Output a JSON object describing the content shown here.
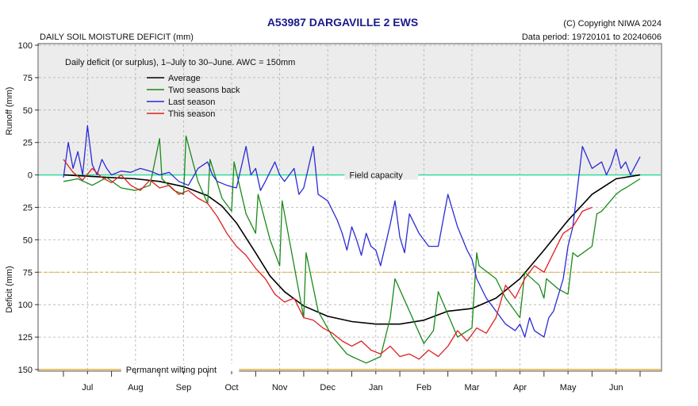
{
  "header": {
    "title": "A53987  DARGAVILLE 2 EWS",
    "subtitle": "DAILY SOIL MOISTURE DEFICIT (mm)",
    "copyright": "(C) Copyright NIWA  2024",
    "data_period": "Data period:  19720101  to  20240606"
  },
  "colors": {
    "average": "#000000",
    "two_seasons_back": "#1a8a1a",
    "last_season": "#2a2ad6",
    "this_season": "#e02020",
    "field_capacity": "#33dd99",
    "awc_half": "#e8b040",
    "wilting": "#e8b040",
    "title": "#1a1a8c",
    "panel": "#ececec"
  },
  "chart_data": {
    "type": "line",
    "title": "A53987  DARGAVILLE 2 EWS",
    "annotation": "Daily deficit (or surplus), 1–July to 30–June.  AWC = 150mm",
    "ylabel_top": "Runoff (mm)",
    "ylabel_bottom": "Deficit (mm)",
    "ylim": [
      -150,
      100
    ],
    "y_ticks": [
      {
        "value": 100,
        "label": "100"
      },
      {
        "value": 75,
        "label": "75"
      },
      {
        "value": 50,
        "label": "50"
      },
      {
        "value": 25,
        "label": "25"
      },
      {
        "value": 0,
        "label": "0"
      },
      {
        "value": -25,
        "label": "25"
      },
      {
        "value": -50,
        "label": "50"
      },
      {
        "value": -75,
        "label": "75"
      },
      {
        "value": -100,
        "label": "100"
      },
      {
        "value": -125,
        "label": "125"
      },
      {
        "value": -150,
        "label": "150"
      }
    ],
    "x_unit": "month index (0 = 1 July, 12 = 30 June)",
    "xlim": [
      0,
      12
    ],
    "months": [
      "Jul",
      "Aug",
      "Sep",
      "Oct",
      "Nov",
      "Dec",
      "Jan",
      "Feb",
      "Mar",
      "Apr",
      "May",
      "Jun"
    ],
    "reference_lines": [
      {
        "name": "field-capacity",
        "value": 0,
        "label": "Field capacity",
        "label_x": 5.95
      },
      {
        "name": "half-awc",
        "value": -75,
        "label": ""
      },
      {
        "name": "permanent-wilting-point",
        "value": -150,
        "label": "Permanent wilting point",
        "label_x": 1.3
      }
    ],
    "series": [
      {
        "name": "Average",
        "color": "#000000",
        "x": [
          0,
          0.5,
          1,
          1.5,
          2,
          2.5,
          3,
          3.3,
          3.6,
          4,
          4.3,
          4.6,
          5,
          5.5,
          6,
          6.5,
          7,
          7.5,
          8,
          8.5,
          9,
          9.5,
          10,
          10.5,
          11,
          11.5,
          12
        ],
        "y": [
          0,
          -1,
          -2,
          -3,
          -5,
          -9,
          -16,
          -24,
          -37,
          -60,
          -78,
          -90,
          -101,
          -109,
          -113,
          -115,
          -115,
          -112,
          -105,
          -103,
          -95,
          -80,
          -58,
          -35,
          -15,
          -3,
          0
        ]
      },
      {
        "name": "Two seasons back",
        "color": "#1a8a1a",
        "x": [
          0,
          0.3,
          0.6,
          0.9,
          1.2,
          1.5,
          1.8,
          2,
          2.05,
          2.3,
          2.5,
          2.55,
          2.8,
          3,
          3.05,
          3.3,
          3.5,
          3.55,
          3.8,
          4,
          4.05,
          4.3,
          4.5,
          4.55,
          4.8,
          5,
          5.05,
          5.3,
          5.6,
          5.9,
          6,
          6.3,
          6.6,
          6.8,
          6.9,
          7.2,
          7.5,
          7.7,
          7.8,
          8.2,
          8.5,
          8.6,
          8.65,
          9,
          9.2,
          9.5,
          9.6,
          9.9,
          10,
          10.05,
          10.3,
          10.5,
          10.6,
          10.7,
          11,
          11.1,
          11.2,
          11.5,
          11.6,
          11.7,
          12
        ],
        "y": [
          -5,
          -3,
          -8,
          -2,
          -10,
          -12,
          -8,
          28,
          -3,
          -12,
          -15,
          30,
          -5,
          -22,
          12,
          -18,
          -28,
          10,
          -30,
          -45,
          -15,
          -50,
          -70,
          -20,
          -70,
          -110,
          -60,
          -105,
          -125,
          -138,
          -140,
          -145,
          -140,
          -110,
          -80,
          -105,
          -130,
          -120,
          -90,
          -125,
          -118,
          -60,
          -70,
          -80,
          -95,
          -110,
          -75,
          -85,
          -95,
          -80,
          -88,
          -92,
          -60,
          -63,
          -55,
          -30,
          -28,
          -15,
          -12,
          -10,
          -3
        ]
      },
      {
        "name": "Last season",
        "color": "#2a2ad6",
        "x": [
          0,
          0.1,
          0.2,
          0.3,
          0.4,
          0.5,
          0.6,
          0.7,
          0.8,
          0.9,
          1,
          1.2,
          1.4,
          1.6,
          1.8,
          2,
          2.2,
          2.4,
          2.6,
          2.8,
          3,
          3.1,
          3.2,
          3.4,
          3.6,
          3.8,
          3.9,
          4,
          4.1,
          4.2,
          4.4,
          4.5,
          4.6,
          4.8,
          4.9,
          5,
          5.2,
          5.3,
          5.5,
          5.7,
          5.8,
          5.9,
          6,
          6.1,
          6.2,
          6.3,
          6.4,
          6.5,
          6.6,
          6.8,
          6.9,
          7,
          7.1,
          7.2,
          7.4,
          7.6,
          7.8,
          8,
          8.2,
          8.4,
          8.5,
          8.6,
          8.8,
          9,
          9.2,
          9.4,
          9.5,
          9.6,
          9.7,
          9.8,
          10,
          10.1,
          10.2,
          10.4,
          10.5,
          10.6,
          10.8,
          11,
          11.2,
          11.3,
          11.4,
          11.5,
          11.6,
          11.7,
          11.8,
          12
        ],
        "y": [
          -2,
          25,
          5,
          18,
          0,
          38,
          8,
          0,
          12,
          5,
          0,
          3,
          2,
          5,
          3,
          0,
          2,
          -5,
          -8,
          5,
          10,
          0,
          -5,
          -8,
          -10,
          22,
          0,
          5,
          -12,
          -5,
          10,
          0,
          -5,
          5,
          -15,
          -10,
          22,
          -15,
          -20,
          -35,
          -45,
          -58,
          -40,
          -50,
          -62,
          -45,
          -55,
          -58,
          -70,
          -38,
          -20,
          -48,
          -60,
          -30,
          -45,
          -55,
          -55,
          -15,
          -40,
          -58,
          -65,
          -80,
          -95,
          -105,
          -115,
          -120,
          -115,
          -125,
          -110,
          -120,
          -125,
          -110,
          -105,
          -80,
          -55,
          -40,
          22,
          5,
          10,
          0,
          8,
          20,
          5,
          10,
          0,
          14
        ]
      },
      {
        "name": "This season",
        "color": "#e02020",
        "x": [
          0,
          0.2,
          0.4,
          0.6,
          0.8,
          1,
          1.2,
          1.4,
          1.6,
          1.8,
          2,
          2.2,
          2.4,
          2.6,
          2.8,
          3,
          3.2,
          3.4,
          3.6,
          3.8,
          4,
          4.2,
          4.4,
          4.6,
          4.8,
          5,
          5.2,
          5.4,
          5.6,
          5.8,
          6,
          6.2,
          6.4,
          6.6,
          6.8,
          7,
          7.2,
          7.4,
          7.6,
          7.8,
          8,
          8.2,
          8.4,
          8.6,
          8.8,
          9,
          9.2,
          9.4,
          9.6,
          9.8,
          10,
          10.2,
          10.4,
          10.6,
          10.8,
          11
        ],
        "y": [
          12,
          2,
          -4,
          5,
          -2,
          -6,
          0,
          -8,
          -12,
          -4,
          -10,
          -8,
          -15,
          -12,
          -18,
          -22,
          -32,
          -45,
          -55,
          -62,
          -72,
          -80,
          -92,
          -98,
          -95,
          -110,
          -112,
          -118,
          -122,
          -128,
          -132,
          -128,
          -135,
          -138,
          -132,
          -140,
          -138,
          -142,
          -135,
          -140,
          -132,
          -120,
          -128,
          -118,
          -122,
          -110,
          -85,
          -95,
          -80,
          -70,
          -75,
          -60,
          -45,
          -40,
          -28,
          -25
        ]
      }
    ]
  }
}
